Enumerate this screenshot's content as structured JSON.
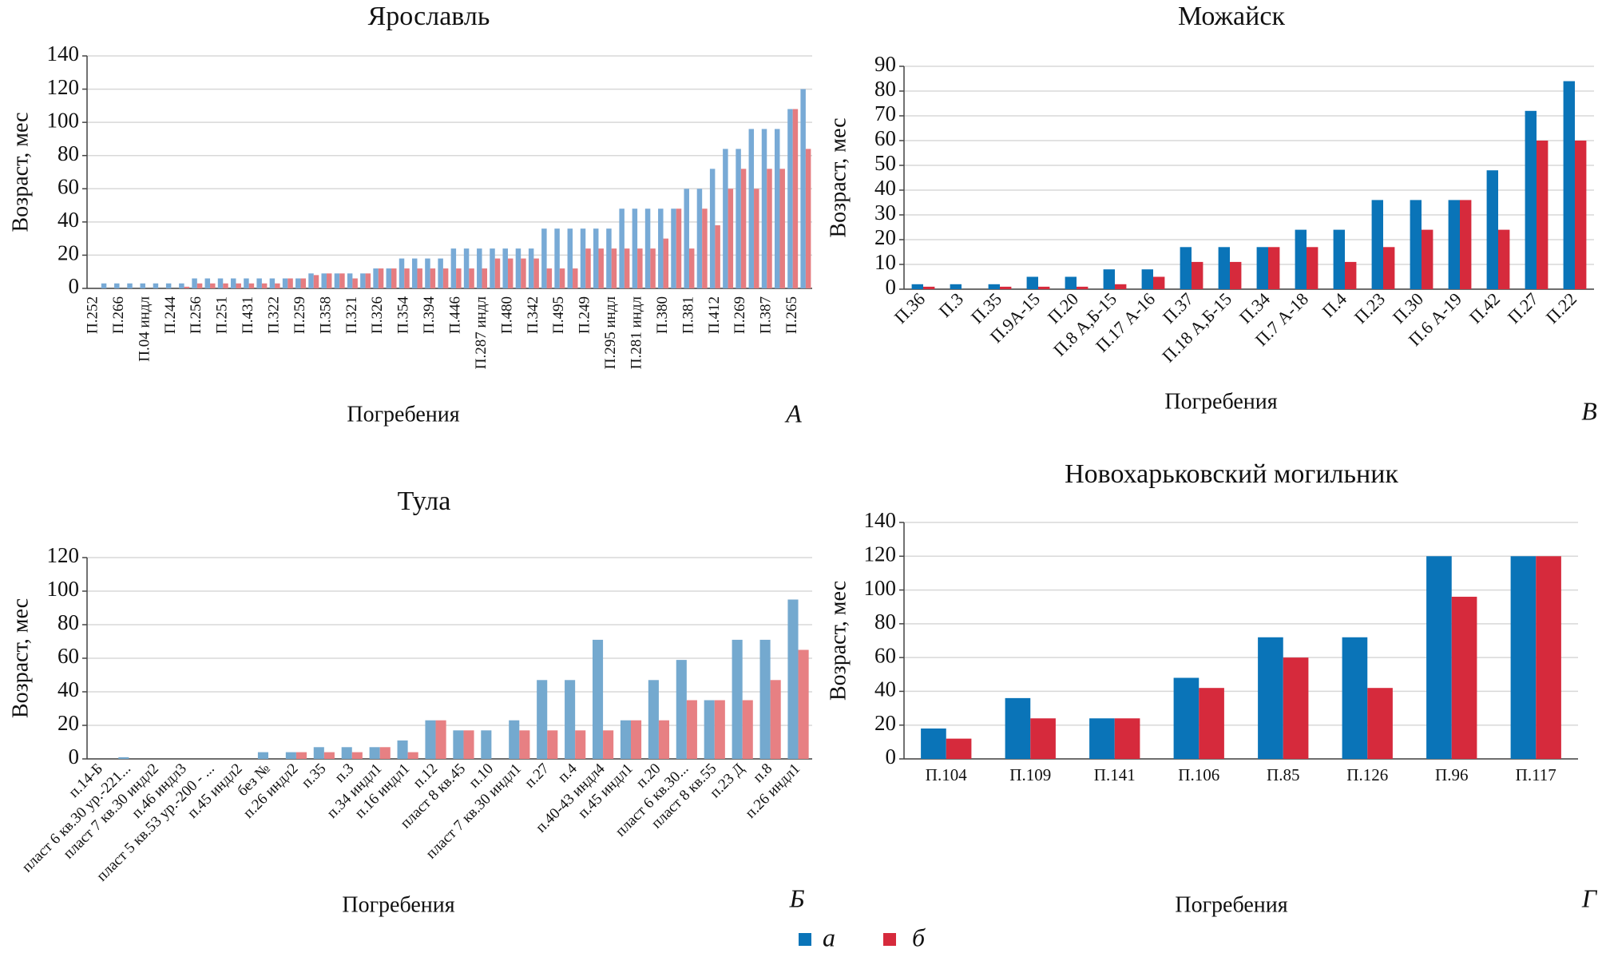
{
  "chart_data": [
    {
      "type": "bar",
      "title": "Ярославль",
      "panel_label": "А",
      "x_label": "Погребения",
      "y_label": "Возраст, мес",
      "categories": [
        "П.252",
        null,
        "П.266",
        null,
        "П.04 индл",
        null,
        "П.244",
        null,
        "П.256",
        null,
        "П.251",
        null,
        "П.431",
        null,
        "П.322",
        null,
        "П.259",
        null,
        "П.358",
        null,
        "П.321",
        null,
        "П.326",
        null,
        "П.354",
        null,
        "П.394",
        null,
        "П.446",
        null,
        "П.287 индл",
        null,
        "П.480",
        null,
        "П.342",
        null,
        "П.495",
        null,
        "П.249",
        null,
        "П.295 индл",
        null,
        "П.281 индл",
        null,
        "П.380",
        null,
        "П.381",
        null,
        "П.412",
        null,
        "П.269",
        null,
        "П.387",
        null,
        "П.265",
        null
      ],
      "series": [
        {
          "name": "а",
          "color": "#78aad6",
          "values": [
            0,
            3,
            3,
            3,
            3,
            3,
            3,
            3,
            6,
            6,
            6,
            6,
            6,
            6,
            6,
            6,
            6,
            9,
            9,
            9,
            9,
            9,
            12,
            12,
            18,
            18,
            18,
            18,
            24,
            24,
            24,
            24,
            24,
            24,
            24,
            36,
            36,
            36,
            36,
            36,
            36,
            48,
            48,
            48,
            48,
            48,
            60,
            60,
            72,
            84,
            84,
            96,
            96,
            96,
            108,
            120
          ]
        },
        {
          "name": "б",
          "color": "#e57c80",
          "values": [
            0,
            0,
            0,
            0,
            0,
            0,
            0,
            1,
            3,
            3,
            3,
            3,
            3,
            3,
            3,
            6,
            6,
            8,
            9,
            9,
            6,
            9,
            12,
            12,
            12,
            12,
            12,
            12,
            12,
            12,
            12,
            18,
            18,
            18,
            18,
            12,
            12,
            12,
            24,
            24,
            24,
            24,
            24,
            24,
            30,
            48,
            24,
            48,
            38,
            60,
            72,
            60,
            72,
            72,
            108,
            84
          ]
        }
      ],
      "ylim": [
        0,
        140
      ],
      "yticks": [
        0,
        20,
        40,
        60,
        80,
        100,
        120,
        140
      ],
      "grid": true
    },
    {
      "type": "bar",
      "title": "Можайск",
      "panel_label": "В",
      "x_label": "Погребения",
      "y_label": "Возраст, мес",
      "categories": [
        "П.36",
        "П.3",
        "П.35",
        "П.9А-15",
        "П.20",
        "П.8 А,Б-15",
        "П.17 А-16",
        "П.37",
        "П.18 А,Б-15",
        "П.34",
        "П.7 А-18",
        "П.4",
        "П.23",
        "П.30",
        "П.6 А-19",
        "П.42",
        "П.27",
        "П.22"
      ],
      "series": [
        {
          "name": "а",
          "color": "#0a74b8",
          "values": [
            2,
            2,
            2,
            5,
            5,
            8,
            8,
            17,
            17,
            17,
            24,
            24,
            36,
            36,
            36,
            48,
            72,
            84
          ]
        },
        {
          "name": "б",
          "color": "#d62a3c",
          "values": [
            1,
            0,
            1,
            1,
            1,
            2,
            5,
            11,
            11,
            17,
            17,
            11,
            17,
            24,
            36,
            24,
            60,
            60
          ]
        }
      ],
      "ylim": [
        0,
        90
      ],
      "yticks": [
        0,
        10,
        20,
        30,
        40,
        50,
        60,
        70,
        80,
        90
      ],
      "grid": true
    },
    {
      "type": "bar",
      "title": "Тула",
      "panel_label": "Б",
      "x_label": "Погребения",
      "y_label": "Возраст, мес",
      "categories": [
        "п.14-Б",
        "пласт 6 кв.30 ур.-221...",
        "пласт 7 кв.30 индл2",
        "п.46 индл3",
        "пласт 5 кв.53 ур.-200 - ...",
        "п.45 индл2",
        "без №",
        "п.26 индл2",
        "п.35",
        "п.3",
        "п.34 индл1",
        "п.16 индл1",
        "п.12",
        "пласт 8 кв.45",
        "п.10",
        "пласт 7 кв.30 индл1",
        "п.27",
        "п.4",
        "п.40-43 индл4",
        "п.45 индл1",
        "п.20",
        "пласт 6 кв.30...",
        "пласт 8 кв.55",
        "п.23 Д",
        "п.8",
        "п.26 индл1"
      ],
      "series": [
        {
          "name": "а",
          "color": "#74a9cf",
          "values": [
            0,
            1,
            0,
            0,
            0,
            0,
            4,
            4,
            7,
            7,
            7,
            11,
            23,
            17,
            17,
            23,
            47,
            47,
            71,
            23,
            47,
            59,
            35,
            71,
            71,
            95
          ]
        },
        {
          "name": "б",
          "color": "#e78083",
          "values": [
            0,
            0,
            0,
            0,
            0,
            0,
            0,
            4,
            4,
            4,
            7,
            4,
            23,
            17,
            0,
            17,
            17,
            17,
            17,
            23,
            23,
            35,
            35,
            35,
            47,
            65
          ]
        }
      ],
      "ylim": [
        0,
        120
      ],
      "yticks": [
        0,
        20,
        40,
        60,
        80,
        100,
        120
      ],
      "grid": true
    },
    {
      "type": "bar",
      "title": "Новохарьковский могильник",
      "panel_label": "Г",
      "x_label": "Погребения",
      "y_label": "Возраст, мес",
      "categories": [
        "П.104",
        "П.109",
        "П.141",
        "П.106",
        "П.85",
        "П.126",
        "П.96",
        "П.117"
      ],
      "series": [
        {
          "name": "а",
          "color": "#0a74b8",
          "values": [
            18,
            36,
            24,
            48,
            72,
            72,
            120,
            120
          ]
        },
        {
          "name": "б",
          "color": "#d62a3c",
          "values": [
            12,
            24,
            24,
            42,
            60,
            42,
            96,
            120
          ]
        }
      ],
      "ylim": [
        0,
        140
      ],
      "yticks": [
        0,
        20,
        40,
        60,
        80,
        100,
        120,
        140
      ],
      "grid": true
    }
  ]
}
